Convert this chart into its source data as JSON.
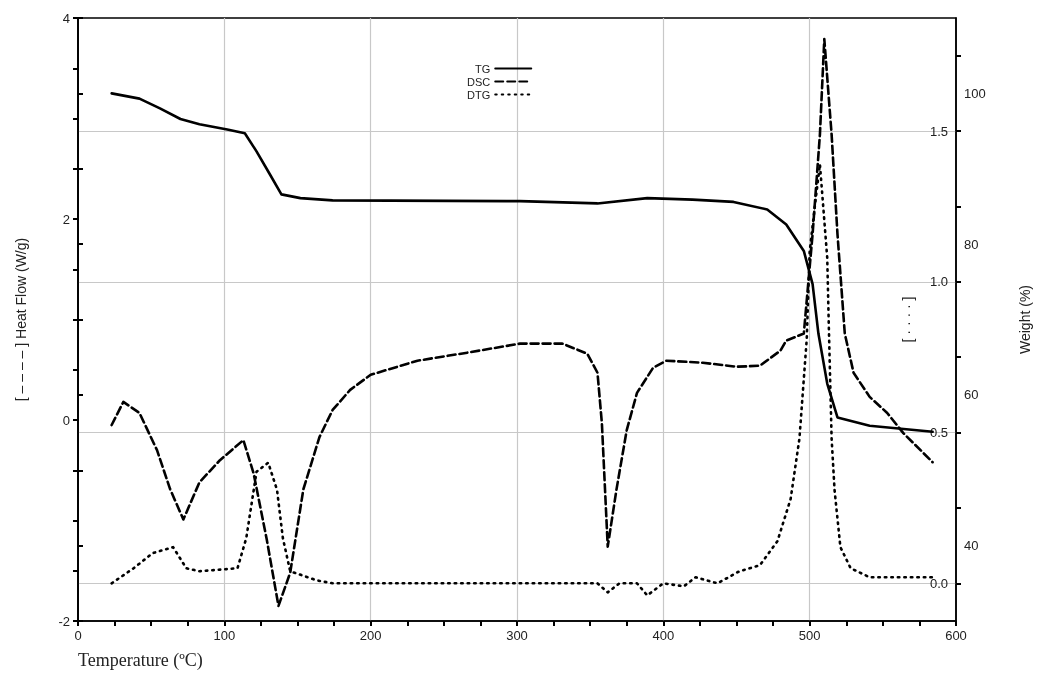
{
  "chart_data": {
    "type": "line",
    "xlabel": "Temperature (ºC)",
    "ylabel": "[ – – – – ] Heat Flow (W/g)",
    "y2label": "Weight (%)",
    "y3label": "[ · · · · ]",
    "xlim": [
      0,
      600
    ],
    "xticks": [
      0,
      {
        "value": 25,
        "label": null
      },
      {
        "value": 50,
        "label": null
      },
      {
        "value": 75,
        "label": null
      },
      100,
      {
        "value": 125,
        "label": null
      },
      {
        "value": 150,
        "label": null
      },
      {
        "value": 175,
        "label": null
      },
      200,
      {
        "value": 225,
        "label": null
      },
      {
        "value": 250,
        "label": null
      },
      {
        "value": 275,
        "label": null
      },
      300,
      {
        "value": 325,
        "label": null
      },
      {
        "value": 350,
        "label": null
      },
      {
        "value": 375,
        "label": null
      },
      400,
      {
        "value": 425,
        "label": null
      },
      {
        "value": 450,
        "label": null
      },
      {
        "value": 475,
        "label": null
      },
      500,
      {
        "value": 525,
        "label": null
      },
      {
        "value": 550,
        "label": null
      },
      {
        "value": 575,
        "label": null
      },
      600
    ],
    "ylim": [
      -2,
      4
    ],
    "yticks": [
      -2,
      {
        "value": -1.5,
        "label": null
      },
      {
        "value": -1,
        "label": null
      },
      {
        "value": -0.5,
        "label": null
      },
      0,
      {
        "value": 0.5,
        "label": null
      },
      {
        "value": 1,
        "label": null
      },
      {
        "value": 1.5,
        "label": null
      },
      2,
      {
        "value": 2.5,
        "label": null
      },
      {
        "value": 3,
        "label": null
      },
      {
        "value": 3.5,
        "label": null
      },
      4
    ],
    "y2lim": [
      30,
      110
    ],
    "y2ticks": [
      {
        "value": 30,
        "label": null
      },
      40,
      {
        "value": 50,
        "label": null
      },
      60,
      {
        "value": 70,
        "label": null
      },
      80,
      {
        "value": 90,
        "label": null
      },
      100,
      {
        "value": 110,
        "label": null
      }
    ],
    "y3lim": [
      -0.125,
      1.875
    ],
    "y3ticks": [
      {
        "value": 0,
        "label": "0.0"
      },
      {
        "value": 0.25,
        "label": null
      },
      0.5,
      {
        "value": 0.75,
        "label": null
      },
      {
        "value": 1,
        "label": "1.0"
      },
      {
        "value": 1.25,
        "label": null
      },
      1.5,
      {
        "value": 1.75,
        "label": null
      }
    ],
    "grid": true,
    "legend": "top",
    "marker": "none",
    "series": [
      {
        "name": "TG",
        "color": "#000000",
        "line_style": "solid",
        "axis": "y2",
        "x": [
          23,
          42,
          56,
          70,
          83,
          102,
          114,
          122,
          131,
          139,
          152,
          174,
          293,
          302,
          355,
          389,
          420,
          448,
          471,
          484,
          496,
          502,
          506,
          512,
          519,
          541,
          584
        ],
        "values": [
          100,
          99.3,
          98,
          96.6,
          95.9,
          95.2,
          94.7,
          92.3,
          89.3,
          86.6,
          86.1,
          85.8,
          85.7,
          85.7,
          85.4,
          86.1,
          85.9,
          85.6,
          84.6,
          82.6,
          79.1,
          74.7,
          68.1,
          61.5,
          57,
          55.9,
          55.1
        ]
      },
      {
        "name": "DSC",
        "color": "#000000",
        "line_style": "dashed",
        "x": [
          23,
          31,
          42,
          54,
          63,
          72,
          83,
          97,
          113,
          120,
          129,
          137,
          145,
          154,
          165,
          174,
          186,
          200,
          232,
          266,
          302,
          331,
          348,
          355,
          358,
          362,
          368,
          375,
          382,
          393,
          402,
          427,
          450,
          466,
          480,
          484,
          496,
          502,
          507,
          510,
          515,
          519,
          524,
          530,
          541,
          553,
          564,
          584
        ],
        "values": [
          -0.05,
          0.18,
          0.07,
          -0.3,
          -0.69,
          -0.99,
          -0.62,
          -0.4,
          -0.2,
          -0.53,
          -1.19,
          -1.85,
          -1.52,
          -0.69,
          -0.17,
          0.1,
          0.3,
          0.45,
          0.59,
          0.67,
          0.76,
          0.76,
          0.66,
          0.47,
          -0.03,
          -1.26,
          -0.69,
          -0.1,
          0.27,
          0.52,
          0.59,
          0.57,
          0.53,
          0.54,
          0.69,
          0.79,
          0.86,
          1.85,
          2.84,
          3.79,
          2.84,
          1.85,
          0.86,
          0.47,
          0.23,
          0.07,
          -0.13,
          -0.42
        ]
      },
      {
        "name": "DTG",
        "color": "#000000",
        "line_style": "dotted",
        "axis": "y3",
        "x": [
          23,
          38,
          51,
          65,
          74,
          83,
          109,
          115,
          122,
          130,
          136,
          140,
          145,
          163,
          174,
          355,
          362,
          370,
          382,
          389,
          400,
          414,
          422,
          437,
          452,
          466,
          478,
          487,
          493,
          498,
          500,
          504,
          507,
          512,
          513,
          515,
          517,
          521,
          528,
          541,
          584
        ],
        "values": [
          0,
          0.05,
          0.1,
          0.12,
          0.05,
          0.04,
          0.05,
          0.15,
          0.37,
          0.4,
          0.31,
          0.15,
          0.04,
          0.01,
          0,
          0,
          -0.03,
          0,
          0,
          -0.04,
          0,
          -0.01,
          0.02,
          0,
          0.04,
          0.06,
          0.14,
          0.28,
          0.48,
          0.81,
          1.1,
          1.27,
          1.39,
          1.08,
          0.87,
          0.48,
          0.31,
          0.12,
          0.05,
          0.02,
          0.02
        ]
      }
    ]
  }
}
